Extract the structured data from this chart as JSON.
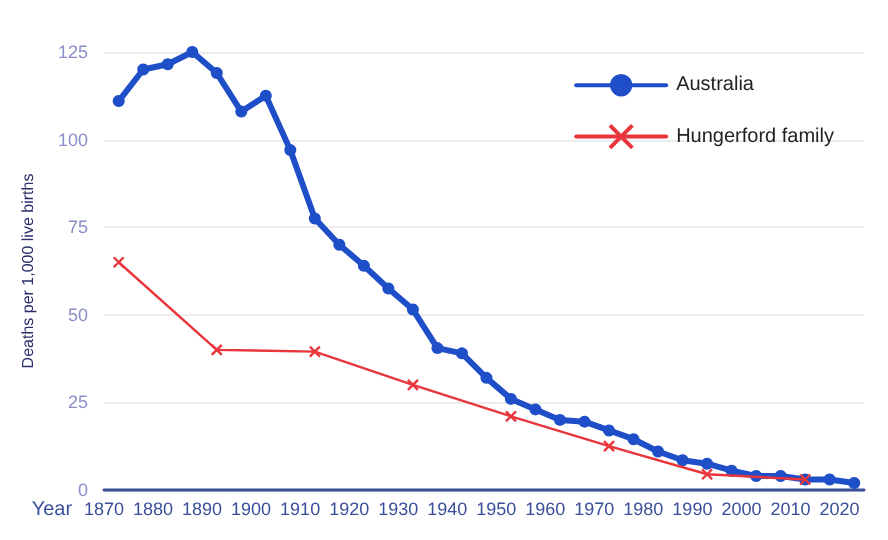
{
  "chart_data": {
    "type": "line",
    "xlabel": "Year",
    "ylabel": "Deaths per 1,000 live births",
    "xlim": [
      1870,
      2025
    ],
    "xticks": [
      1870,
      1880,
      1890,
      1900,
      1910,
      1920,
      1930,
      1940,
      1950,
      1960,
      1970,
      1980,
      1990,
      2000,
      2010,
      2020
    ],
    "ylim": [
      0,
      125
    ],
    "yticks": [
      0,
      25,
      50,
      75,
      100,
      125
    ],
    "grid": "y",
    "legend": "top right",
    "series": [
      {
        "name": "Australia",
        "color": "#1f4fc8",
        "marker": "circle",
        "x": [
          1873,
          1878,
          1883,
          1888,
          1893,
          1898,
          1903,
          1908,
          1913,
          1918,
          1923,
          1928,
          1933,
          1938,
          1943,
          1948,
          1953,
          1958,
          1963,
          1968,
          1973,
          1978,
          1983,
          1988,
          1993,
          1998,
          2003,
          2008,
          2013,
          2018,
          2023
        ],
        "values": [
          111,
          120,
          121.5,
          125,
          119,
          108,
          112.5,
          97,
          77.5,
          70,
          64,
          57.5,
          51.5,
          40.5,
          39,
          32,
          26,
          23,
          20,
          19.5,
          17,
          14.5,
          11,
          8.5,
          7.5,
          5.5,
          4,
          4,
          3,
          3,
          2
        ]
      },
      {
        "name": "Hungerford family",
        "color": "#e8363c",
        "marker": "cross",
        "x": [
          1873,
          1893,
          1913,
          1933,
          1953,
          1973,
          1993,
          2013
        ],
        "values": [
          65,
          40,
          39.5,
          30,
          21,
          12.5,
          4.5,
          3
        ]
      }
    ]
  }
}
